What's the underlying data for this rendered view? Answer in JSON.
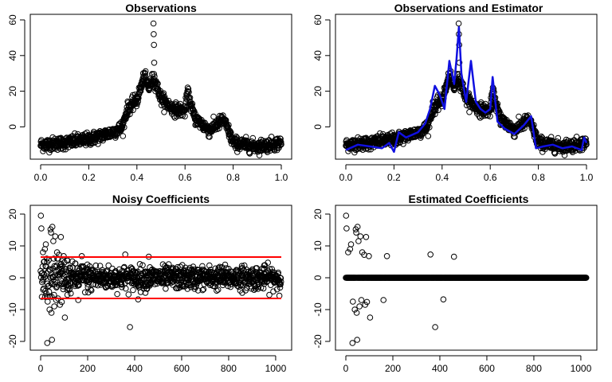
{
  "chart_data": [
    {
      "id": "observations",
      "type": "scatter",
      "title": "Observations",
      "xlim": [
        0,
        1
      ],
      "ylim": [
        -15,
        60
      ],
      "xticks": [
        0.0,
        0.2,
        0.4,
        0.6,
        0.8,
        1.0
      ],
      "xtick_labels": [
        "0.0",
        "0.2",
        "0.4",
        "0.6",
        "0.8",
        "1.0"
      ],
      "yticks": [
        0,
        20,
        40,
        60
      ],
      "ytick_labels": [
        "0",
        "20",
        "40",
        "60"
      ],
      "grid": false,
      "n_points": 1024,
      "trend": {
        "x": [
          0.0,
          0.1,
          0.2,
          0.3,
          0.34,
          0.36,
          0.4,
          0.43,
          0.45,
          0.47,
          0.5,
          0.55,
          0.6,
          0.61,
          0.64,
          0.7,
          0.76,
          0.78,
          0.8,
          0.9,
          1.0
        ],
        "y": [
          -10,
          -9,
          -7,
          -3,
          0,
          10,
          15,
          28,
          22,
          28,
          16,
          10,
          9,
          19,
          5,
          -2,
          4,
          -2,
          -9,
          -11,
          -9
        ]
      },
      "extreme_points": [
        {
          "x": 0.469,
          "y": 58
        },
        {
          "x": 0.47,
          "y": 52
        },
        {
          "x": 0.471,
          "y": 46
        },
        {
          "x": 0.472,
          "y": 36
        }
      ]
    },
    {
      "id": "observations-estimator",
      "type": "scatter",
      "title": "Observations and Estimator",
      "xlim": [
        0,
        1
      ],
      "ylim": [
        -15,
        60
      ],
      "xticks": [
        0.0,
        0.2,
        0.4,
        0.6,
        0.8,
        1.0
      ],
      "xtick_labels": [
        "0.0",
        "0.2",
        "0.4",
        "0.6",
        "0.8",
        "1.0"
      ],
      "yticks": [
        0,
        20,
        40,
        60
      ],
      "ytick_labels": [
        "0",
        "20",
        "40",
        "60"
      ],
      "grid": false,
      "estimator_color": "#1010e0",
      "estimator": {
        "x": [
          0.0,
          0.05,
          0.1,
          0.15,
          0.18,
          0.2,
          0.22,
          0.25,
          0.3,
          0.33,
          0.35,
          0.37,
          0.39,
          0.41,
          0.43,
          0.45,
          0.46,
          0.47,
          0.48,
          0.5,
          0.52,
          0.54,
          0.56,
          0.58,
          0.6,
          0.61,
          0.63,
          0.66,
          0.7,
          0.74,
          0.77,
          0.79,
          0.82,
          0.86,
          0.9,
          0.94,
          0.98,
          0.99,
          1.0
        ],
        "y": [
          -13,
          -10,
          -11,
          -12,
          -9,
          -14,
          -3,
          -6,
          -3,
          2,
          10,
          23,
          18,
          10,
          37,
          24,
          38,
          56,
          30,
          14,
          37,
          14,
          10,
          8,
          10,
          28,
          3,
          -1,
          -4,
          1,
          6,
          -12,
          -11,
          -10,
          -12,
          -11,
          -13,
          -6,
          -9
        ]
      }
    },
    {
      "id": "noisy-coefficients",
      "type": "scatter",
      "title": "Noisy Coefficients",
      "xlim": [
        0,
        1024
      ],
      "ylim": [
        -21,
        21
      ],
      "xticks": [
        0,
        200,
        400,
        600,
        800,
        1000
      ],
      "xtick_labels": [
        "0",
        "200",
        "400",
        "600",
        "800",
        "1000"
      ],
      "yticks": [
        -20,
        -10,
        0,
        10,
        20
      ],
      "ytick_labels": [
        "-20",
        "-10",
        "0",
        "10",
        "20"
      ],
      "grid": false,
      "threshold_color": "#ff0000",
      "threshold_lines": [
        6.5,
        -6.5
      ],
      "n_points": 1024,
      "large_points": [
        {
          "x": 1,
          "y": 19.5
        },
        {
          "x": 3,
          "y": 15.5
        },
        {
          "x": 5,
          "y": -6
        },
        {
          "x": 10,
          "y": 8
        },
        {
          "x": 14,
          "y": 5
        },
        {
          "x": 18,
          "y": 9
        },
        {
          "x": 22,
          "y": 10.5
        },
        {
          "x": 26,
          "y": 6
        },
        {
          "x": 28,
          "y": -20.5
        },
        {
          "x": 30,
          "y": -7.5
        },
        {
          "x": 34,
          "y": 5.5
        },
        {
          "x": 38,
          "y": -10
        },
        {
          "x": 42,
          "y": 15.2
        },
        {
          "x": 44,
          "y": 14.2
        },
        {
          "x": 46,
          "y": -11
        },
        {
          "x": 48,
          "y": -19.5
        },
        {
          "x": 50,
          "y": 16
        },
        {
          "x": 54,
          "y": 11.5
        },
        {
          "x": 58,
          "y": -9
        },
        {
          "x": 62,
          "y": 13
        },
        {
          "x": 66,
          "y": -7
        },
        {
          "x": 70,
          "y": 8
        },
        {
          "x": 74,
          "y": -6.5
        },
        {
          "x": 78,
          "y": 7.2
        },
        {
          "x": 82,
          "y": -8.5
        },
        {
          "x": 86,
          "y": 12.8
        },
        {
          "x": 90,
          "y": -7.6
        },
        {
          "x": 98,
          "y": 6.8
        },
        {
          "x": 103,
          "y": -12.5
        },
        {
          "x": 160,
          "y": -7
        },
        {
          "x": 175,
          "y": 6.8
        },
        {
          "x": 360,
          "y": 7.3
        },
        {
          "x": 380,
          "y": -15.5
        },
        {
          "x": 415,
          "y": -6.8
        },
        {
          "x": 460,
          "y": 6.6
        }
      ]
    },
    {
      "id": "estimated-coefficients",
      "type": "scatter",
      "title": "Estimated Coefficients",
      "xlim": [
        0,
        1024
      ],
      "ylim": [
        -21,
        21
      ],
      "xticks": [
        0,
        200,
        400,
        600,
        800,
        1000
      ],
      "xtick_labels": [
        "0",
        "200",
        "400",
        "600",
        "800",
        "1000"
      ],
      "yticks": [
        -20,
        -10,
        0,
        10,
        20
      ],
      "ytick_labels": [
        "-20",
        "-10",
        "0",
        "10",
        "20"
      ],
      "grid": false,
      "zero_coefficients_range": [
        0,
        1024
      ],
      "nonzero_points": [
        {
          "x": 1,
          "y": 19.5
        },
        {
          "x": 3,
          "y": 15.5
        },
        {
          "x": 10,
          "y": 8
        },
        {
          "x": 18,
          "y": 9
        },
        {
          "x": 22,
          "y": 10.5
        },
        {
          "x": 28,
          "y": -20.5
        },
        {
          "x": 30,
          "y": -7.5
        },
        {
          "x": 38,
          "y": -10
        },
        {
          "x": 42,
          "y": 15.2
        },
        {
          "x": 44,
          "y": 14.2
        },
        {
          "x": 46,
          "y": -11
        },
        {
          "x": 48,
          "y": -19.5
        },
        {
          "x": 50,
          "y": 16
        },
        {
          "x": 54,
          "y": 11.5
        },
        {
          "x": 58,
          "y": -9
        },
        {
          "x": 62,
          "y": 13
        },
        {
          "x": 66,
          "y": -7
        },
        {
          "x": 70,
          "y": 8
        },
        {
          "x": 78,
          "y": 7.2
        },
        {
          "x": 82,
          "y": -8.5
        },
        {
          "x": 86,
          "y": 12.8
        },
        {
          "x": 90,
          "y": -7.6
        },
        {
          "x": 98,
          "y": 6.8
        },
        {
          "x": 103,
          "y": -12.5
        },
        {
          "x": 160,
          "y": -7
        },
        {
          "x": 175,
          "y": 6.8
        },
        {
          "x": 360,
          "y": 7.3
        },
        {
          "x": 380,
          "y": -15.5
        },
        {
          "x": 415,
          "y": -6.8
        },
        {
          "x": 460,
          "y": 6.6
        }
      ]
    }
  ]
}
